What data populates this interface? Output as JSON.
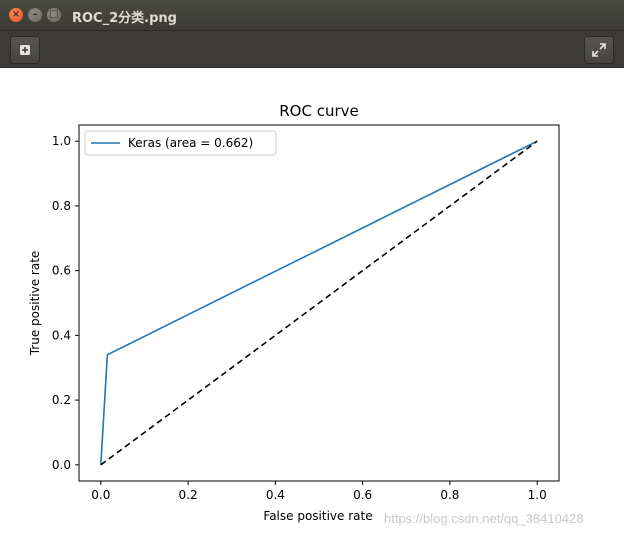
{
  "window": {
    "title": "ROC_2分类.png"
  },
  "toolbar": {
    "left_icon": "add-icon",
    "right_icon": "fullscreen-icon"
  },
  "watermark": "https://blog.csdn.net/qq_38410428",
  "chart_data": {
    "type": "line",
    "title": "ROC curve",
    "xlabel": "False positive rate",
    "ylabel": "True positive rate",
    "xlim": [
      -0.05,
      1.05
    ],
    "ylim": [
      -0.05,
      1.05
    ],
    "xticks": [
      0.0,
      0.2,
      0.4,
      0.6,
      0.8,
      1.0
    ],
    "yticks": [
      0.0,
      0.2,
      0.4,
      0.6,
      0.8,
      1.0
    ],
    "xtick_labels": [
      "0.0",
      "0.2",
      "0.4",
      "0.6",
      "0.8",
      "1.0"
    ],
    "ytick_labels": [
      "0.0",
      "0.2",
      "0.4",
      "0.6",
      "0.8",
      "1.0"
    ],
    "legend_position": "top-left",
    "grid": false,
    "series": [
      {
        "name": "Keras (area = 0.662)",
        "color": "#1f77b4",
        "style": "solid",
        "x": [
          0.0,
          0.015,
          1.0
        ],
        "y": [
          0.0,
          0.34,
          1.0
        ]
      },
      {
        "name": "",
        "color": "#000000",
        "style": "dashed",
        "x": [
          0.0,
          1.0
        ],
        "y": [
          0.0,
          1.0
        ]
      }
    ]
  }
}
